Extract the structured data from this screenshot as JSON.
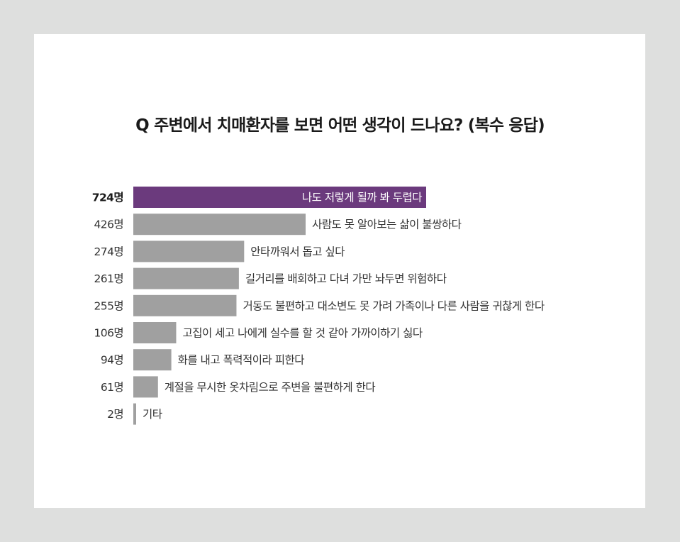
{
  "chart_data": {
    "type": "bar",
    "orientation": "horizontal",
    "title": "Q 주변에서 치매환자를 보면 어떤 생각이 드나요? (복수 응답)",
    "categories": [
      "나도 저렇게 될까 봐 두렵다",
      "사람도 못 알아보는 삶이 불쌍하다",
      "안타까워서 돕고 싶다",
      "길거리를 배회하고 다녀 가만 놔두면 위험하다",
      "거동도 불편하고 대소변도 못 가려 가족이나 다른 사람을 귀찮게 한다",
      "고집이 세고 나에게 실수를 할 것 같아 가까이하기 싫다",
      "화를 내고 폭력적이라 피한다",
      "계절을 무시한 옷차림으로 주변을 불편하게 한다",
      "기타"
    ],
    "values": [
      724,
      426,
      274,
      261,
      255,
      106,
      94,
      61,
      2
    ],
    "value_labels": [
      "724명",
      "426명",
      "274명",
      "261명",
      "255명",
      "106명",
      "94명",
      "61명",
      "2명"
    ],
    "highlight_index": 0,
    "colors": {
      "highlight": "#6b3a7d",
      "bar": "#a0a0a0",
      "background": "#dedfde",
      "card": "#ffffff"
    },
    "grid": false,
    "legend": "none"
  }
}
